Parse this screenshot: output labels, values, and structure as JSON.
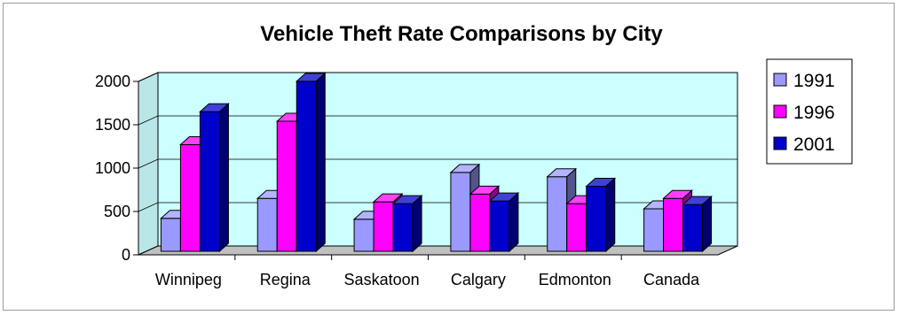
{
  "chart_data": {
    "type": "bar",
    "title": "Vehicle Theft Rate Comparisons by City",
    "xlabel": "",
    "ylabel": "",
    "categories": [
      "Winnipeg",
      "Regina",
      "Saskatoon",
      "Calgary",
      "Edmonton",
      "Canada"
    ],
    "series": [
      {
        "name": "1991",
        "values": [
          380,
          610,
          370,
          910,
          860,
          490
        ],
        "color": "#9999ff"
      },
      {
        "name": "1996",
        "values": [
          1230,
          1500,
          570,
          660,
          550,
          610
        ],
        "color": "#ff00ff"
      },
      {
        "name": "2001",
        "values": [
          1610,
          1960,
          550,
          580,
          750,
          540
        ],
        "color": "#0000cc"
      }
    ],
    "ylim": [
      0,
      2000
    ],
    "yticks": [
      "0",
      "500",
      "1000",
      "1500",
      "2000"
    ],
    "grid": true,
    "three_d": true,
    "plot_background": "#ccffff",
    "legend_position": "right"
  }
}
